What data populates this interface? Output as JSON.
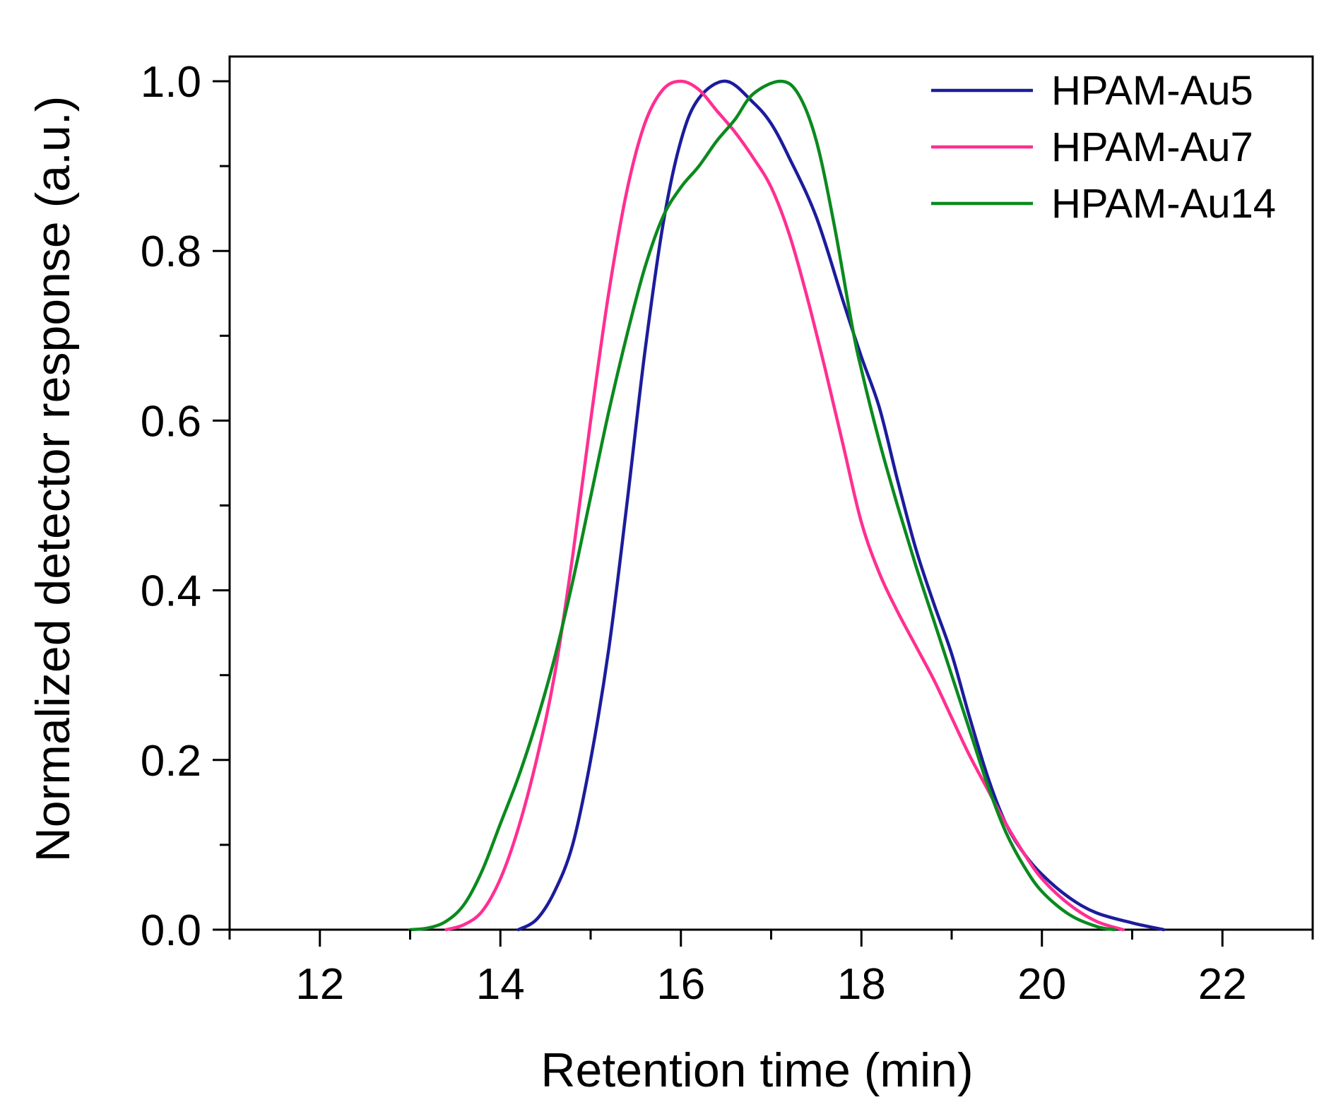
{
  "chart_data": {
    "type": "line",
    "xlabel": "Retention time (min)",
    "ylabel": "Normalized detector response (a.u.)",
    "xlim": [
      11,
      23
    ],
    "ylim": [
      0,
      1.0
    ],
    "x_ticks": [
      12,
      14,
      16,
      18,
      20,
      22
    ],
    "x_minor_ticks": [
      11,
      13,
      15,
      17,
      19,
      21,
      23
    ],
    "y_ticks": [
      0.0,
      0.2,
      0.4,
      0.6,
      0.8,
      1.0
    ],
    "y_tick_labels": [
      "0.0",
      "0.2",
      "0.4",
      "0.6",
      "0.8",
      "1.0"
    ],
    "y_minor_ticks": [
      0.1,
      0.3,
      0.5,
      0.7,
      0.9
    ],
    "grid": false,
    "legend_position": "top-right",
    "series": [
      {
        "name": "HPAM-Au5",
        "color": "#1c1c9c",
        "points": [
          [
            14.2,
            0.0
          ],
          [
            14.4,
            0.012
          ],
          [
            14.6,
            0.045
          ],
          [
            14.8,
            0.1
          ],
          [
            15.0,
            0.2
          ],
          [
            15.2,
            0.33
          ],
          [
            15.4,
            0.5
          ],
          [
            15.6,
            0.68
          ],
          [
            15.8,
            0.83
          ],
          [
            16.0,
            0.93
          ],
          [
            16.2,
            0.98
          ],
          [
            16.5,
            1.0
          ],
          [
            16.8,
            0.975
          ],
          [
            17.0,
            0.95
          ],
          [
            17.2,
            0.91
          ],
          [
            17.5,
            0.84
          ],
          [
            17.8,
            0.74
          ],
          [
            18.0,
            0.675
          ],
          [
            18.2,
            0.615
          ],
          [
            18.4,
            0.53
          ],
          [
            18.6,
            0.45
          ],
          [
            18.8,
            0.385
          ],
          [
            19.0,
            0.325
          ],
          [
            19.2,
            0.25
          ],
          [
            19.4,
            0.18
          ],
          [
            19.6,
            0.125
          ],
          [
            19.8,
            0.09
          ],
          [
            20.0,
            0.065
          ],
          [
            20.3,
            0.038
          ],
          [
            20.6,
            0.02
          ],
          [
            21.0,
            0.008
          ],
          [
            21.35,
            0.0
          ]
        ]
      },
      {
        "name": "HPAM-Au7",
        "color": "#ff2f92",
        "points": [
          [
            13.4,
            0.0
          ],
          [
            13.6,
            0.006
          ],
          [
            13.8,
            0.022
          ],
          [
            14.0,
            0.06
          ],
          [
            14.2,
            0.12
          ],
          [
            14.4,
            0.2
          ],
          [
            14.6,
            0.3
          ],
          [
            14.8,
            0.44
          ],
          [
            15.0,
            0.6
          ],
          [
            15.2,
            0.75
          ],
          [
            15.4,
            0.87
          ],
          [
            15.6,
            0.95
          ],
          [
            15.8,
            0.99
          ],
          [
            16.0,
            1.0
          ],
          [
            16.2,
            0.99
          ],
          [
            16.4,
            0.965
          ],
          [
            16.6,
            0.94
          ],
          [
            16.8,
            0.91
          ],
          [
            17.0,
            0.875
          ],
          [
            17.2,
            0.82
          ],
          [
            17.4,
            0.745
          ],
          [
            17.6,
            0.66
          ],
          [
            17.8,
            0.57
          ],
          [
            18.0,
            0.48
          ],
          [
            18.2,
            0.42
          ],
          [
            18.4,
            0.375
          ],
          [
            18.6,
            0.335
          ],
          [
            18.8,
            0.295
          ],
          [
            19.0,
            0.25
          ],
          [
            19.2,
            0.205
          ],
          [
            19.4,
            0.165
          ],
          [
            19.6,
            0.125
          ],
          [
            19.8,
            0.09
          ],
          [
            20.0,
            0.06
          ],
          [
            20.3,
            0.03
          ],
          [
            20.6,
            0.01
          ],
          [
            20.9,
            0.0
          ]
        ]
      },
      {
        "name": "HPAM-Au14",
        "color": "#0b8a1e",
        "points": [
          [
            13.0,
            0.0
          ],
          [
            13.2,
            0.002
          ],
          [
            13.4,
            0.01
          ],
          [
            13.6,
            0.03
          ],
          [
            13.8,
            0.07
          ],
          [
            14.0,
            0.125
          ],
          [
            14.2,
            0.18
          ],
          [
            14.4,
            0.245
          ],
          [
            14.6,
            0.32
          ],
          [
            14.8,
            0.41
          ],
          [
            15.0,
            0.51
          ],
          [
            15.2,
            0.61
          ],
          [
            15.4,
            0.7
          ],
          [
            15.6,
            0.78
          ],
          [
            15.8,
            0.84
          ],
          [
            16.0,
            0.875
          ],
          [
            16.2,
            0.9
          ],
          [
            16.4,
            0.93
          ],
          [
            16.6,
            0.955
          ],
          [
            16.8,
            0.985
          ],
          [
            17.1,
            1.0
          ],
          [
            17.3,
            0.985
          ],
          [
            17.5,
            0.93
          ],
          [
            17.7,
            0.83
          ],
          [
            17.9,
            0.71
          ],
          [
            18.0,
            0.66
          ],
          [
            18.2,
            0.575
          ],
          [
            18.4,
            0.5
          ],
          [
            18.6,
            0.43
          ],
          [
            18.8,
            0.365
          ],
          [
            19.0,
            0.3
          ],
          [
            19.2,
            0.235
          ],
          [
            19.4,
            0.17
          ],
          [
            19.6,
            0.115
          ],
          [
            19.8,
            0.075
          ],
          [
            20.0,
            0.045
          ],
          [
            20.3,
            0.018
          ],
          [
            20.6,
            0.004
          ],
          [
            20.8,
            0.0
          ]
        ]
      }
    ]
  }
}
